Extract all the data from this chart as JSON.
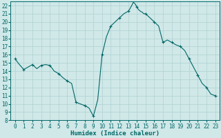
{
  "title": "",
  "xlabel": "Humidex (Indice chaleur)",
  "ylabel": "",
  "xlim": [
    -0.5,
    23.5
  ],
  "ylim": [
    8,
    22.5
  ],
  "yticks": [
    8,
    9,
    10,
    11,
    12,
    13,
    14,
    15,
    16,
    17,
    18,
    19,
    20,
    21,
    22
  ],
  "xticks": [
    0,
    1,
    2,
    3,
    4,
    5,
    6,
    7,
    8,
    9,
    10,
    11,
    12,
    13,
    14,
    15,
    16,
    17,
    18,
    19,
    20,
    21,
    22,
    23
  ],
  "line_color": "#006666",
  "marker_color": "#006666",
  "bg_color": "#d0e8e8",
  "grid_color": "#b0d0d0",
  "x": [
    0,
    0.5,
    1,
    1.5,
    2,
    2.5,
    3,
    3.5,
    4,
    4.5,
    5,
    5.5,
    6,
    6.5,
    7,
    7.5,
    8,
    8.5,
    9,
    9.5,
    10,
    10.5,
    11,
    11.5,
    12,
    12.5,
    13,
    13.2,
    13.4,
    13.6,
    13.8,
    14,
    14.2,
    14.4,
    14.6,
    14.8,
    15,
    15.5,
    16,
    16.5,
    17,
    17.5,
    18,
    18.5,
    19,
    19.5,
    20,
    20.5,
    21,
    21.5,
    22,
    22.5,
    23
  ],
  "y": [
    15.5,
    14.8,
    14.2,
    14.5,
    14.8,
    14.3,
    14.7,
    14.8,
    14.7,
    14.0,
    13.7,
    13.2,
    12.8,
    12.5,
    10.2,
    10.0,
    9.8,
    9.5,
    8.5,
    10.5,
    16.0,
    18.2,
    19.5,
    20.0,
    20.5,
    21.0,
    21.3,
    21.6,
    22.0,
    22.4,
    22.2,
    21.8,
    21.5,
    21.3,
    21.2,
    21.0,
    21.0,
    20.5,
    20.0,
    19.5,
    17.5,
    17.8,
    17.5,
    17.2,
    17.0,
    16.5,
    15.5,
    14.5,
    13.5,
    12.5,
    12.0,
    11.2,
    11.0
  ],
  "marker_x": [
    0,
    1,
    2,
    3,
    4,
    5,
    6,
    7,
    8,
    9,
    10,
    11,
    12,
    13,
    14,
    15,
    16,
    17,
    18,
    19,
    20,
    21,
    22,
    23
  ],
  "marker_y": [
    15.5,
    14.2,
    14.8,
    14.7,
    14.7,
    13.7,
    12.8,
    10.2,
    9.8,
    8.5,
    16.0,
    19.5,
    20.5,
    21.3,
    21.8,
    21.0,
    20.0,
    17.5,
    17.5,
    17.0,
    15.5,
    13.5,
    12.0,
    11.0
  ],
  "label_fontsize": 6.5,
  "tick_fontsize": 5.5,
  "figsize": [
    3.2,
    2.0
  ],
  "dpi": 100
}
